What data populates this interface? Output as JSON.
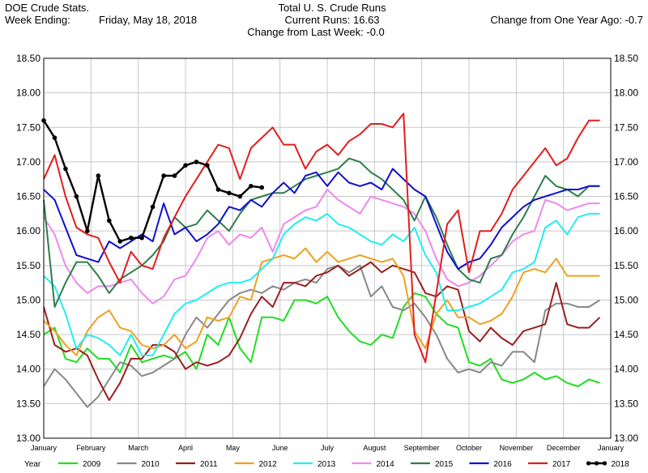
{
  "header": {
    "left_line1": "DOE Crude Stats.",
    "left_line2": "Week Ending:",
    "week_date": "Friday, May 18, 2018",
    "center_line1": "Total U. S. Crude Runs",
    "center_line2": "Current Runs: 16.63",
    "center_line3": "Change from Last Week:  -0.0",
    "right_line": "Change from One Year Ago:  -0.7"
  },
  "chart_data": {
    "type": "line",
    "title": "Total U. S. Crude Runs",
    "ylim": [
      13.0,
      18.5
    ],
    "y_ticks": [
      "13.00",
      "13.50",
      "14.00",
      "14.50",
      "15.00",
      "15.50",
      "16.00",
      "16.50",
      "17.00",
      "17.50",
      "18.00",
      "18.50"
    ],
    "x_domain": [
      0,
      52
    ],
    "month_labels": [
      "January",
      "February",
      "March",
      "April",
      "May",
      "June",
      "July",
      "August",
      "September",
      "October",
      "November",
      "December",
      "January"
    ],
    "grid": true,
    "legend_title": "Year",
    "legend_position": "bottom",
    "series": [
      {
        "name": "2009",
        "color": "#22dd22",
        "marker": false,
        "values": [
          14.5,
          14.6,
          14.15,
          14.1,
          14.3,
          14.15,
          14.15,
          13.95,
          14.35,
          14.1,
          14.15,
          14.2,
          14.15,
          14.25,
          14.0,
          14.5,
          14.35,
          14.75,
          14.3,
          14.1,
          14.75,
          14.75,
          14.7,
          15.0,
          15.0,
          14.95,
          15.05,
          14.75,
          14.55,
          14.4,
          14.35,
          14.5,
          14.45,
          14.9,
          15.1,
          15.05,
          14.8,
          14.65,
          14.6,
          14.1,
          14.05,
          14.15,
          13.85,
          13.8,
          13.85,
          13.95,
          13.85,
          13.9,
          13.8,
          13.75,
          13.85,
          13.8
        ]
      },
      {
        "name": "2010",
        "color": "#888888",
        "marker": false,
        "values": [
          13.75,
          14.0,
          13.85,
          13.65,
          13.45,
          13.6,
          13.85,
          14.1,
          14.05,
          13.9,
          13.95,
          14.05,
          14.15,
          14.5,
          14.75,
          14.6,
          14.8,
          15.0,
          15.1,
          15.15,
          15.1,
          15.2,
          15.15,
          15.25,
          15.3,
          15.25,
          15.45,
          15.5,
          15.4,
          15.5,
          15.05,
          15.2,
          14.9,
          14.85,
          14.95,
          14.75,
          14.5,
          14.15,
          13.95,
          14.0,
          13.95,
          14.1,
          14.05,
          14.25,
          14.25,
          14.1,
          14.85,
          14.95,
          14.95,
          14.9,
          14.9,
          15.0
        ]
      },
      {
        "name": "2011",
        "color": "#9a1f1f",
        "marker": false,
        "values": [
          14.9,
          14.35,
          14.25,
          14.3,
          14.2,
          13.85,
          13.55,
          13.8,
          14.15,
          14.15,
          14.35,
          14.35,
          14.25,
          14.0,
          14.1,
          14.05,
          14.1,
          14.2,
          14.45,
          14.8,
          15.05,
          14.9,
          15.25,
          15.25,
          15.2,
          15.35,
          15.4,
          15.5,
          15.35,
          15.45,
          15.55,
          15.4,
          15.5,
          15.45,
          15.4,
          15.1,
          15.05,
          15.2,
          15.15,
          14.55,
          14.4,
          14.6,
          14.45,
          14.35,
          14.55,
          14.6,
          14.65,
          15.25,
          14.65,
          14.6,
          14.6,
          14.75
        ]
      },
      {
        "name": "2012",
        "color": "#f0a020",
        "marker": false,
        "values": [
          14.7,
          14.55,
          14.35,
          14.2,
          14.55,
          14.75,
          14.85,
          14.6,
          14.55,
          14.35,
          14.3,
          14.35,
          14.5,
          14.3,
          14.4,
          14.75,
          14.7,
          14.75,
          15.05,
          15.0,
          15.55,
          15.6,
          15.65,
          15.6,
          15.75,
          15.55,
          15.7,
          15.55,
          15.6,
          15.65,
          15.6,
          15.55,
          15.6,
          15.35,
          14.55,
          14.3,
          14.8,
          15.0,
          14.75,
          14.75,
          14.65,
          14.7,
          14.8,
          15.05,
          15.4,
          15.45,
          15.4,
          15.6,
          15.35,
          15.35,
          15.35,
          15.35
        ]
      },
      {
        "name": "2013",
        "color": "#22eeee",
        "marker": false,
        "values": [
          15.35,
          15.2,
          14.8,
          14.3,
          14.5,
          14.45,
          14.35,
          14.2,
          14.5,
          14.2,
          14.2,
          14.5,
          14.8,
          14.95,
          15.0,
          15.1,
          15.2,
          15.25,
          15.25,
          15.3,
          15.45,
          15.6,
          15.95,
          16.1,
          16.2,
          16.15,
          16.25,
          16.1,
          16.05,
          15.95,
          15.85,
          15.8,
          15.95,
          15.85,
          16.05,
          15.65,
          15.4,
          14.85,
          14.85,
          14.9,
          14.95,
          15.05,
          15.15,
          15.4,
          15.45,
          15.55,
          16.05,
          16.15,
          15.95,
          16.2,
          16.25,
          16.25
        ]
      },
      {
        "name": "2014",
        "color": "#ee88ee",
        "marker": false,
        "values": [
          16.2,
          15.95,
          15.5,
          15.25,
          15.1,
          15.2,
          15.2,
          15.25,
          15.3,
          15.1,
          14.95,
          15.05,
          15.3,
          15.35,
          15.6,
          15.9,
          16.0,
          15.8,
          15.95,
          15.9,
          16.05,
          15.7,
          16.1,
          16.2,
          16.3,
          16.35,
          16.6,
          16.45,
          16.35,
          16.25,
          16.5,
          16.45,
          16.4,
          16.35,
          16.25,
          16.0,
          15.6,
          15.3,
          15.2,
          15.25,
          15.35,
          15.5,
          15.65,
          15.85,
          15.95,
          16.0,
          16.45,
          16.4,
          16.3,
          16.35,
          16.4,
          16.4
        ]
      },
      {
        "name": "2015",
        "color": "#2e7d4a",
        "marker": false,
        "values": [
          16.45,
          14.9,
          15.25,
          15.55,
          15.55,
          15.35,
          15.1,
          15.3,
          15.4,
          15.5,
          15.65,
          15.85,
          16.2,
          16.05,
          16.1,
          16.3,
          16.15,
          16.0,
          16.25,
          16.45,
          16.5,
          16.55,
          16.55,
          16.65,
          16.75,
          16.8,
          16.85,
          16.9,
          17.05,
          17.0,
          16.85,
          16.75,
          16.6,
          16.45,
          16.15,
          16.5,
          16.2,
          15.8,
          15.45,
          15.3,
          15.25,
          15.6,
          15.65,
          15.95,
          16.2,
          16.5,
          16.8,
          16.65,
          16.6,
          16.5,
          16.65,
          16.65
        ]
      },
      {
        "name": "2016",
        "color": "#1010cc",
        "marker": false,
        "values": [
          16.6,
          16.45,
          16.05,
          15.65,
          15.6,
          15.55,
          15.85,
          15.75,
          15.85,
          15.95,
          15.85,
          16.4,
          15.95,
          16.05,
          15.85,
          15.95,
          16.1,
          16.35,
          16.3,
          16.45,
          16.35,
          16.55,
          16.7,
          16.55,
          16.8,
          16.85,
          16.65,
          16.85,
          16.7,
          16.65,
          16.7,
          16.6,
          16.9,
          16.75,
          16.6,
          16.5,
          16.1,
          15.7,
          15.45,
          15.55,
          15.6,
          15.8,
          16.05,
          16.2,
          16.35,
          16.45,
          16.5,
          16.55,
          16.6,
          16.6,
          16.65,
          16.65
        ]
      },
      {
        "name": "2017",
        "color": "#e21d1d",
        "marker": false,
        "values": [
          16.75,
          17.1,
          16.5,
          16.05,
          15.95,
          15.9,
          15.55,
          15.25,
          15.7,
          15.5,
          15.45,
          15.9,
          16.2,
          16.5,
          16.75,
          17.0,
          17.25,
          17.2,
          16.75,
          17.2,
          17.35,
          17.5,
          17.25,
          17.25,
          16.9,
          17.15,
          17.25,
          17.1,
          17.3,
          17.4,
          17.55,
          17.55,
          17.5,
          17.7,
          14.5,
          14.1,
          15.1,
          16.1,
          16.3,
          15.4,
          16.0,
          16.0,
          16.25,
          16.6,
          16.8,
          17.0,
          17.2,
          16.95,
          17.05,
          17.35,
          17.6,
          17.6
        ]
      },
      {
        "name": "2018",
        "color": "#000000",
        "marker": true,
        "values": [
          17.6,
          17.35,
          16.9,
          16.5,
          16.0,
          16.8,
          16.15,
          15.85,
          15.9,
          15.9,
          16.35,
          16.8,
          16.8,
          16.95,
          17.0,
          16.95,
          16.6,
          16.55,
          16.5,
          16.65,
          16.63
        ]
      }
    ]
  }
}
